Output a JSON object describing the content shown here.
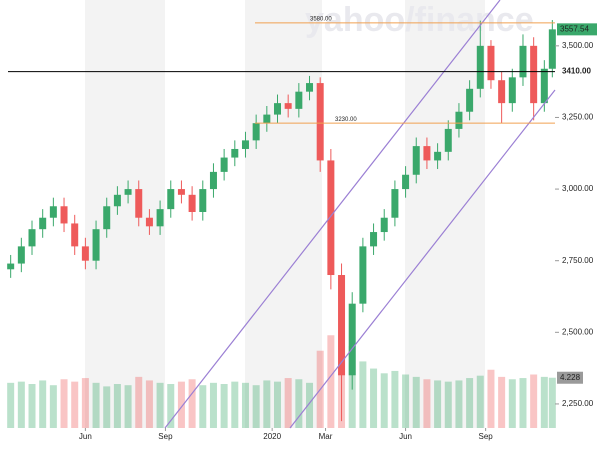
{
  "chart_data": {
    "type": "candlestick",
    "watermark": "yahoo/finance",
    "x": [
      0.2,
      0.6,
      1.0,
      1.4,
      1.8,
      2.2,
      2.6,
      3.0,
      3.4,
      3.8,
      4.2,
      4.6,
      5.0,
      5.4,
      5.8,
      6.2,
      6.6,
      7.0,
      7.4,
      7.8,
      8.2,
      8.6,
      9.0,
      9.4,
      9.8,
      10.2,
      10.6,
      11.0,
      11.4,
      11.8,
      12.2,
      12.6,
      13.0,
      13.4,
      13.8,
      14.2,
      14.6,
      15.0,
      15.4,
      15.8,
      16.2,
      16.6,
      17.0,
      17.4,
      17.8,
      18.2,
      18.6,
      19.0,
      19.4,
      19.8,
      20.2,
      20.5
    ],
    "open": [
      2720,
      2740,
      2800,
      2860,
      2900,
      2940,
      2880,
      2800,
      2750,
      2860,
      2940,
      2980,
      3000,
      2900,
      2870,
      2930,
      3000,
      2980,
      2920,
      3000,
      3060,
      3110,
      3140,
      3170,
      3230,
      3260,
      3300,
      3280,
      3340,
      3370,
      3100,
      2700,
      2350,
      2600,
      2800,
      2850,
      2900,
      3000,
      3050,
      3150,
      3100,
      3130,
      3210,
      3270,
      3350,
      3500,
      3380,
      3300,
      3390,
      3500,
      3300,
      3420
    ],
    "high": [
      2770,
      2830,
      2890,
      2930,
      2970,
      2970,
      2910,
      2830,
      2890,
      2970,
      3010,
      3030,
      3030,
      2930,
      2960,
      3030,
      3030,
      3010,
      3030,
      3090,
      3140,
      3170,
      3200,
      3260,
      3290,
      3330,
      3330,
      3370,
      3395,
      3390,
      3140,
      2740,
      2640,
      2830,
      2880,
      2930,
      3030,
      3080,
      3180,
      3180,
      3160,
      3240,
      3300,
      3380,
      3588,
      3520,
      3410,
      3420,
      3540,
      3530,
      3450,
      3590
    ],
    "low": [
      2690,
      2710,
      2770,
      2830,
      2870,
      2850,
      2770,
      2720,
      2720,
      2830,
      2910,
      2950,
      2870,
      2840,
      2840,
      2900,
      2950,
      2890,
      2890,
      2970,
      3030,
      3080,
      3110,
      3140,
      3200,
      3230,
      3250,
      3250,
      3310,
      3060,
      2650,
      2190,
      2300,
      2570,
      2770,
      2820,
      2870,
      2970,
      3020,
      3070,
      3070,
      3100,
      3180,
      3240,
      3320,
      3350,
      3230,
      3270,
      3360,
      3240,
      3270,
      3390
    ],
    "close": [
      2740,
      2800,
      2860,
      2900,
      2940,
      2880,
      2800,
      2750,
      2860,
      2940,
      2980,
      3000,
      2900,
      2870,
      2930,
      3000,
      2980,
      2920,
      3000,
      3060,
      3110,
      3140,
      3170,
      3230,
      3260,
      3300,
      3280,
      3340,
      3370,
      3100,
      2700,
      2350,
      2600,
      2800,
      2850,
      2900,
      3000,
      3050,
      3150,
      3100,
      3130,
      3210,
      3270,
      3350,
      3500,
      3380,
      3300,
      3390,
      3500,
      3300,
      3420,
      3557.54
    ],
    "volume": {
      "axis": "y2",
      "values": [
        3.8,
        3.9,
        3.7,
        4.0,
        3.6,
        4.1,
        3.9,
        4.2,
        3.8,
        3.5,
        3.7,
        3.6,
        4.3,
        4.0,
        3.8,
        3.7,
        3.9,
        4.1,
        3.6,
        3.8,
        3.7,
        3.9,
        3.8,
        3.6,
        4.0,
        3.9,
        4.2,
        4.1,
        3.8,
        6.5,
        7.8,
        8.2,
        6.9,
        5.6,
        5.0,
        4.6,
        4.8,
        4.5,
        4.3,
        4.1,
        4.0,
        3.9,
        4.0,
        4.2,
        4.4,
        4.9,
        4.3,
        4.1,
        4.2,
        4.5,
        4.3,
        4.228
      ]
    },
    "up_color": "#3aa86b",
    "down_color": "#ee5a5a",
    "xlim": [
      0.1,
      20.6
    ],
    "xticks": [
      {
        "value": 3,
        "label": "Jun"
      },
      {
        "value": 6,
        "label": "Sep"
      },
      {
        "value": 10,
        "label": "2020"
      },
      {
        "value": 12,
        "label": "Mar"
      },
      {
        "value": 15,
        "label": "Jun"
      },
      {
        "value": 18,
        "label": "Sep"
      }
    ],
    "ylim": [
      2166,
      3660
    ],
    "yticks": [
      {
        "value": 2250,
        "label": "2,250.00"
      },
      {
        "value": 2500,
        "label": "2,500.00"
      },
      {
        "value": 2750,
        "label": "2,750.00"
      },
      {
        "value": 3000,
        "label": "3,000.00"
      },
      {
        "value": 3250,
        "label": "3,250.00"
      },
      {
        "value": 3500,
        "label": "3,500.00"
      }
    ],
    "y2lim": [
      0,
      36
    ],
    "grid": false,
    "lines": [
      {
        "value": 3580,
        "label": "3580.00",
        "color": "#f0a050"
      },
      {
        "value": 3410,
        "label": "3410.00",
        "color": "#000000"
      },
      {
        "value": 3230,
        "label": "3230.00",
        "color": "#f0a050"
      }
    ]
  }
}
